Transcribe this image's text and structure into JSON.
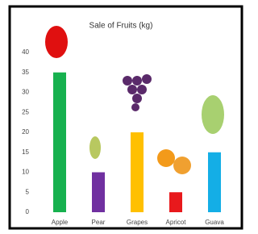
{
  "chart_data": {
    "type": "bar",
    "title": "Sale of Fruits (kg)",
    "categories": [
      "Apple",
      "Pear",
      "Grapes",
      "Apricot",
      "Guava"
    ],
    "values": [
      35,
      10,
      20,
      5,
      15
    ],
    "colors": [
      "#17b14f",
      "#7030a0",
      "#ffc000",
      "#e8191c",
      "#14aee6"
    ],
    "ylim": [
      0,
      40
    ],
    "yticks": [
      0,
      5,
      10,
      15,
      20,
      25,
      30,
      35,
      40
    ],
    "grid": false
  }
}
